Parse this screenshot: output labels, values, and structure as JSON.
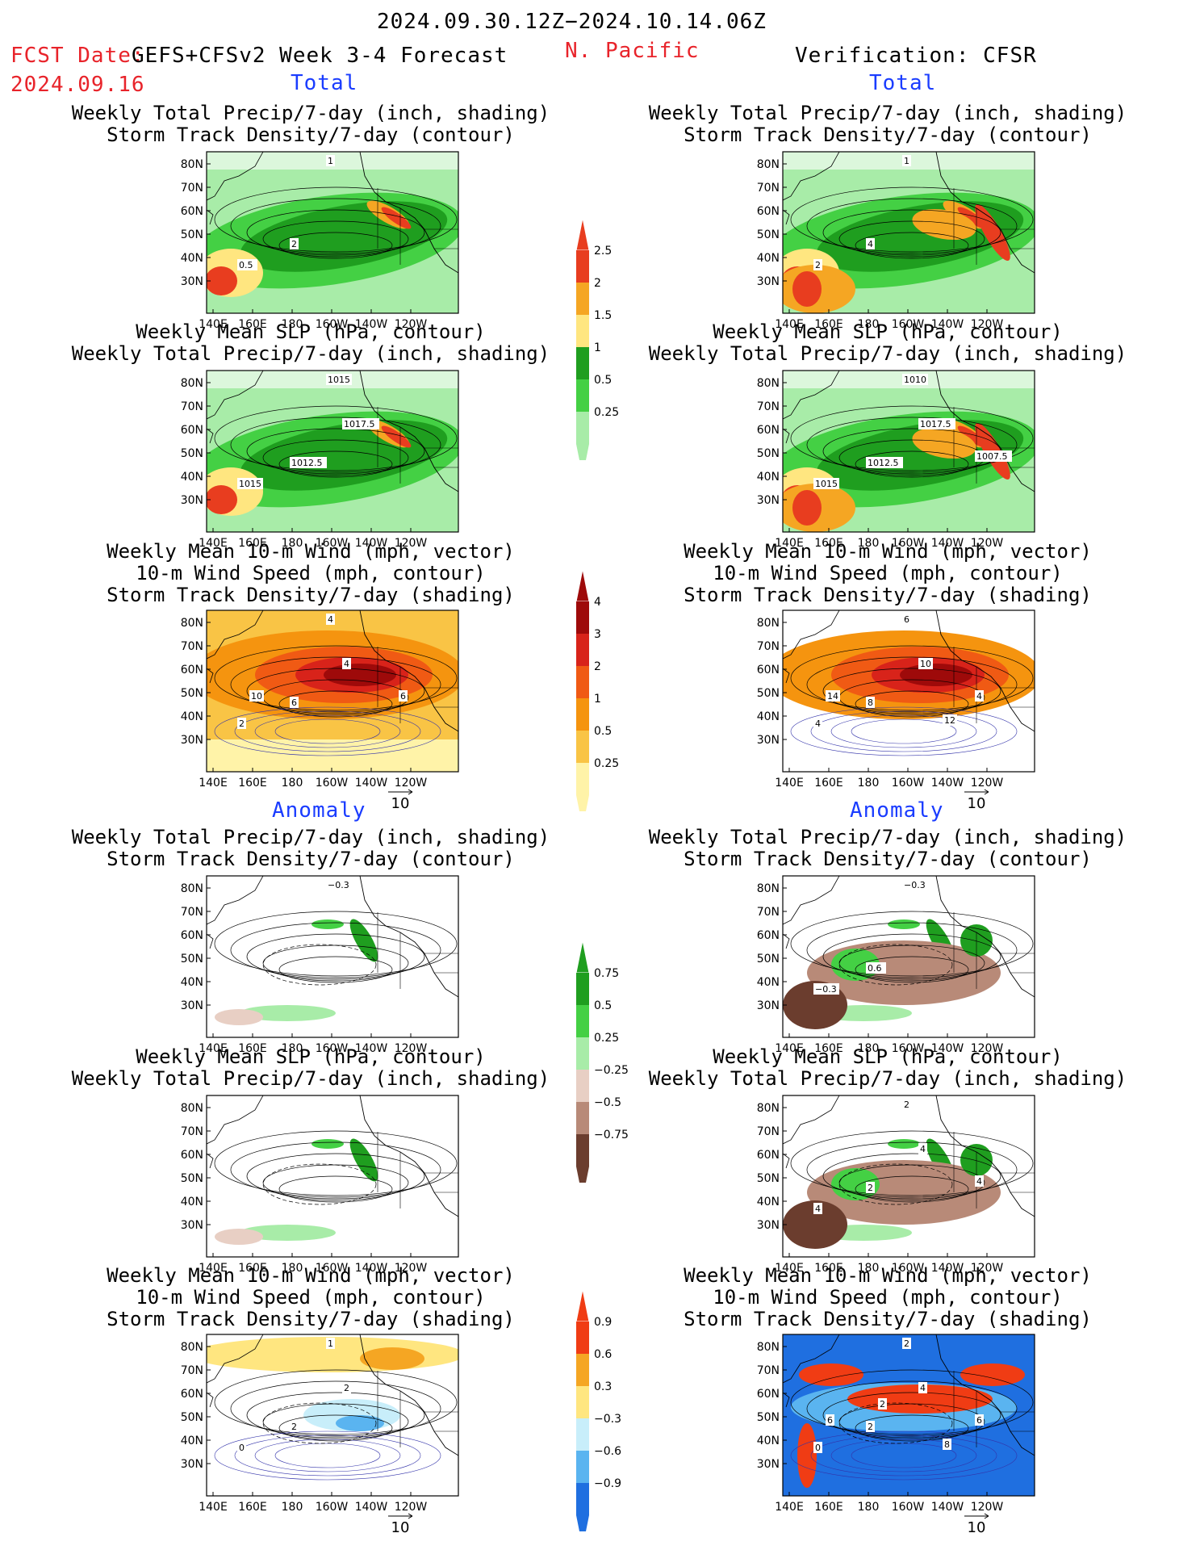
{
  "header": {
    "period": "2024.09.30.12Z−2024.10.14.06Z",
    "fcst_label": "FCST Date:",
    "fcst_model": "GEFS+CFSv2 Week 3-4 Forecast",
    "fcst_date": "2024.09.16",
    "region": "N. Pacific",
    "verification": "Verification: CFSR",
    "total_left": "Total",
    "total_right": "Total",
    "anomaly_left": "Anomaly",
    "anomaly_right": "Anomaly"
  },
  "titles": {
    "precip_storm": [
      "Weekly Total Precip/7-day (inch, shading)",
      "Storm Track Density/7-day (contour)"
    ],
    "slp_precip": [
      "Weekly Mean SLP (hPa, contour)",
      "Weekly Total Precip/7-day (inch, shading)"
    ],
    "wind_storm": [
      "Weekly Mean 10-m Wind (mph, vector)",
      "10-m Wind Speed (mph, contour)",
      "Storm Track Density/7-day (shading)"
    ]
  },
  "axes": {
    "lat": [
      "80N",
      "70N",
      "60N",
      "50N",
      "40N",
      "30N"
    ],
    "lon": [
      "140E",
      "160E",
      "180",
      "160W",
      "140W",
      "120W"
    ]
  },
  "vector_ref": "10",
  "colorbars": {
    "precip_total": {
      "labels": [
        "2.5",
        "2",
        "1.5",
        "1",
        "0.5",
        "0.25"
      ],
      "colors": [
        "#e83d1f",
        "#f5a623",
        "#ffe680",
        "#1f9e1f",
        "#44d044",
        "#a8eca8"
      ]
    },
    "storm_total": {
      "labels": [
        "4",
        "3",
        "2",
        "1",
        "0.5",
        "0.25"
      ],
      "colors": [
        "#9e0a0a",
        "#d8231a",
        "#f05a14",
        "#f5940f",
        "#f9c445",
        "#fff3a8"
      ]
    },
    "precip_anom": {
      "labels": [
        "0.75",
        "0.5",
        "0.25",
        "−0.25",
        "−0.5",
        "−0.75"
      ],
      "colors": [
        "#1f9e1f",
        "#44d044",
        "#a8eca8",
        "#e8cfc4",
        "#b88a78",
        "#6b3d2e"
      ]
    },
    "storm_anom": {
      "labels": [
        "0.9",
        "0.6",
        "0.3",
        "−0.3",
        "−0.6",
        "−0.9"
      ],
      "colors": [
        "#f03c14",
        "#f5a623",
        "#ffe680",
        "#c8eefa",
        "#5ab4f0",
        "#1f6fe0"
      ]
    }
  },
  "contour_labels": {
    "fcst_precip": [
      "1",
      "2",
      "0.5"
    ],
    "obs_precip": [
      "1",
      "4",
      "2"
    ],
    "fcst_slp": [
      "1015",
      "1012.5",
      "1015",
      "1017.5"
    ],
    "obs_slp": [
      "1010",
      "1012.5",
      "1015",
      "1017.5",
      "1007.5"
    ],
    "fcst_wind": [
      "4",
      "6",
      "2",
      "4",
      "6",
      "10"
    ],
    "obs_wind": [
      "6",
      "8",
      "4",
      "10",
      "4",
      "14",
      "12"
    ],
    "fcst_precip_anom": [
      "−0.3"
    ],
    "obs_precip_anom": [
      "−0.3",
      "0.6",
      "−0.3"
    ],
    "fcst_slp_anom": [],
    "obs_slp_anom": [
      "2",
      "2",
      "4",
      "4",
      "4"
    ],
    "fcst_wind_anom": [
      "1",
      "2",
      "0",
      "2"
    ],
    "obs_wind_anom": [
      "2",
      "2",
      "0",
      "4",
      "6",
      "6",
      "8",
      "2"
    ]
  }
}
